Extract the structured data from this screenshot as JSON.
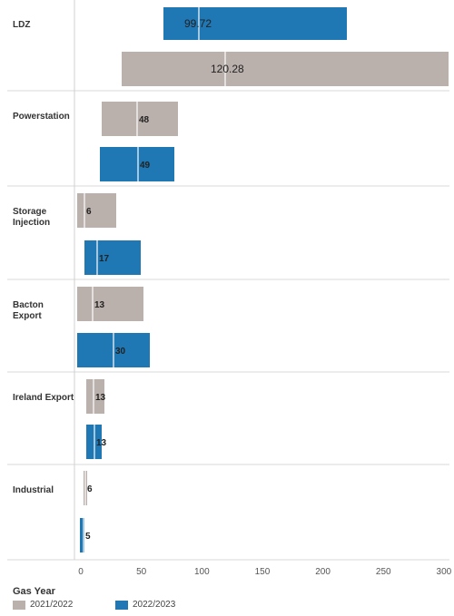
{
  "chart_data": {
    "type": "bar",
    "orientation": "horizontal",
    "categories": [
      "LDZ",
      "Powerstation",
      "Storage\nInjection",
      "Bacton\nExport",
      "Ireland Export",
      "Industrial"
    ],
    "series": [
      {
        "name": "2021/2022",
        "color": "#bab0ac",
        "values": [
          120.28,
          48,
          6,
          13,
          13,
          6
        ]
      },
      {
        "name": "2022/2023",
        "color": "#1f77b4",
        "values": [
          99.72,
          49,
          17,
          30,
          13,
          5
        ]
      }
    ],
    "series_order_per_category": [
      [
        "2022/2023",
        "2021/2022"
      ],
      [
        "2021/2022",
        "2022/2023"
      ],
      [
        "2021/2022",
        "2022/2023"
      ],
      [
        "2021/2022",
        "2022/2023"
      ],
      [
        "2021/2022",
        "2022/2023"
      ],
      [
        "2021/2022",
        "2022/2023"
      ]
    ],
    "xlim": [
      0,
      300
    ],
    "xticks": [
      0,
      50,
      100,
      150,
      200,
      250,
      300
    ],
    "legend": {
      "title": "Gas Year",
      "placement": "bottom-left"
    },
    "grid": false
  }
}
